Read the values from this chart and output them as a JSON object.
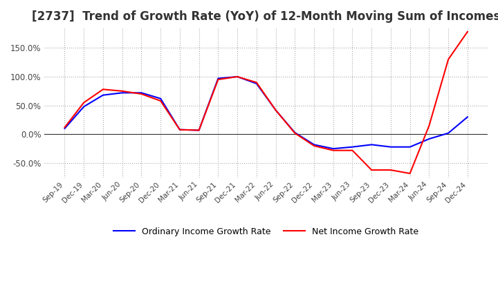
{
  "title": "[2737]  Trend of Growth Rate (YoY) of 12-Month Moving Sum of Incomes",
  "title_fontsize": 12,
  "ylim": [
    -75,
    185
  ],
  "yticks": [
    -50,
    0,
    50,
    100,
    150
  ],
  "background_color": "#ffffff",
  "grid_color": "#aaaaaa",
  "legend_labels": [
    "Ordinary Income Growth Rate",
    "Net Income Growth Rate"
  ],
  "legend_colors": [
    "#0000ff",
    "#ff0000"
  ],
  "x_labels": [
    "Sep-19",
    "Dec-19",
    "Mar-20",
    "Jun-20",
    "Sep-20",
    "Dec-20",
    "Mar-21",
    "Jun-21",
    "Sep-21",
    "Dec-21",
    "Mar-22",
    "Jun-22",
    "Sep-22",
    "Dec-22",
    "Mar-23",
    "Jun-23",
    "Sep-23",
    "Dec-23",
    "Mar-24",
    "Jun-24",
    "Sep-24",
    "Dec-24"
  ],
  "ordinary_income": [
    10,
    48,
    68,
    72,
    72,
    62,
    8,
    7,
    97,
    100,
    88,
    42,
    3,
    -18,
    -25,
    -22,
    -18,
    -22,
    -22,
    -8,
    2,
    30
  ],
  "net_income": [
    12,
    55,
    78,
    75,
    70,
    58,
    8,
    7,
    95,
    100,
    90,
    42,
    2,
    -20,
    -28,
    -28,
    -62,
    -62,
    -68,
    15,
    130,
    178
  ],
  "line_width": 1.5
}
